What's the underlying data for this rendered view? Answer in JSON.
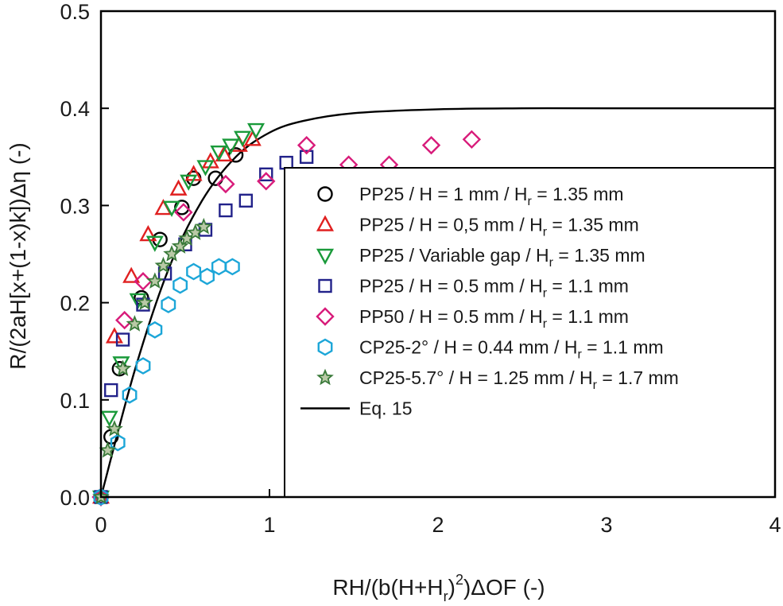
{
  "chart_data": {
    "type": "scatter",
    "title": "",
    "xlabel": "RH/(b(H+Hr)²)ΔOF (-)",
    "xlabel_parts": {
      "a": "RH/(b(H+H",
      "sub": "r",
      "b": ")",
      "sup": "2",
      "c": ")ΔOF (-)"
    },
    "ylabel": "R/(2aH[x+(1-x)k])Δη (-)",
    "xlim": [
      0,
      4
    ],
    "ylim": [
      0,
      0.5
    ],
    "xticks": [
      "0",
      "1",
      "2",
      "3",
      "4"
    ],
    "yticks": [
      "0.0",
      "0.1",
      "0.2",
      "0.3",
      "0.4",
      "0.5"
    ],
    "legend_position": "bottom-right",
    "series": [
      {
        "name": "PP25 / H = 1 mm / Hr = 1.35 mm",
        "label_parts": {
          "a": "PP25 / H = 1 mm / H",
          "sub": "r",
          "b": " = 1.35 mm"
        },
        "marker": "circle",
        "color": "#000000",
        "x": [
          0,
          0.06,
          0.11,
          0.24,
          0.35,
          0.48,
          0.55,
          0.68,
          0.8
        ],
        "y": [
          0,
          0.062,
          0.132,
          0.205,
          0.265,
          0.298,
          0.328,
          0.328,
          0.352
        ]
      },
      {
        "name": "PP25 / H = 0,5 mm / Hr = 1.35 mm",
        "label_parts": {
          "a": "PP25 / H = 0,5 mm / H",
          "sub": "r",
          "b": " = 1.35 mm"
        },
        "marker": "triangle-up",
        "color": "#e02020",
        "x": [
          0,
          0.08,
          0.18,
          0.28,
          0.37,
          0.46,
          0.55,
          0.65,
          0.73,
          0.82,
          0.9
        ],
        "y": [
          0,
          0.165,
          0.227,
          0.27,
          0.297,
          0.317,
          0.332,
          0.345,
          0.352,
          0.362,
          0.368
        ]
      },
      {
        "name": "PP25 / Variable gap / Hr = 1.35 mm",
        "label_parts": {
          "a": "PP25 / Variable gap / H",
          "sub": "r",
          "b": " = 1.35 mm"
        },
        "marker": "triangle-down",
        "color": "#1a9a3a",
        "x": [
          0,
          0.05,
          0.12,
          0.22,
          0.32,
          0.42,
          0.52,
          0.62,
          0.7,
          0.77,
          0.84,
          0.92
        ],
        "y": [
          0,
          0.082,
          0.138,
          0.203,
          0.262,
          0.298,
          0.325,
          0.34,
          0.355,
          0.362,
          0.37,
          0.378
        ]
      },
      {
        "name": "PP25 / H = 0.5 mm / Hr = 1.1 mm",
        "label_parts": {
          "a": "PP25 / H = 0.5 mm / H",
          "sub": "r",
          "b": " = 1.1 mm"
        },
        "marker": "square",
        "color": "#22228a",
        "x": [
          0,
          0.06,
          0.13,
          0.25,
          0.38,
          0.5,
          0.62,
          0.74,
          0.86,
          0.98,
          1.1,
          1.22
        ],
        "y": [
          0,
          0.11,
          0.162,
          0.198,
          0.23,
          0.26,
          0.275,
          0.295,
          0.305,
          0.332,
          0.344,
          0.35
        ]
      },
      {
        "name": "PP50 / H = 0.5 mm / Hr = 1.1 mm",
        "label_parts": {
          "a": "PP50 / H = 0.5 mm / H",
          "sub": "r",
          "b": " = 1.1 mm"
        },
        "marker": "diamond",
        "color": "#d81b7a",
        "x": [
          0,
          0.14,
          0.25,
          0.49,
          0.74,
          0.98,
          1.22,
          1.47,
          1.71,
          1.96,
          2.2
        ],
        "y": [
          0,
          0.182,
          0.222,
          0.293,
          0.322,
          0.325,
          0.362,
          0.342,
          0.342,
          0.362,
          0.368
        ]
      },
      {
        "name": "CP25-2° / H = 0.44 mm / Hr = 1.1 mm",
        "label_parts": {
          "a": "CP25-2° / H = 0.44 mm / H",
          "sub": "r",
          "b": " = 1.1 mm"
        },
        "marker": "hexagon",
        "color": "#1ca6d8",
        "x": [
          0,
          0.1,
          0.17,
          0.25,
          0.32,
          0.4,
          0.47,
          0.55,
          0.63,
          0.7,
          0.78
        ],
        "y": [
          0,
          0.056,
          0.105,
          0.135,
          0.172,
          0.198,
          0.218,
          0.232,
          0.227,
          0.237,
          0.237
        ]
      },
      {
        "name": "CP25-5.7° / H = 1.25 mm / Hr = 1.7 mm",
        "label_parts": {
          "a": "CP25-5.7° / H = 1.25 mm / H",
          "sub": "r",
          "b": " = 1.7 mm"
        },
        "marker": "star",
        "color": "#3a7a3a",
        "x": [
          0,
          0.04,
          0.08,
          0.13,
          0.2,
          0.26,
          0.32,
          0.37,
          0.42,
          0.47,
          0.51,
          0.56,
          0.61
        ],
        "y": [
          0,
          0.048,
          0.07,
          0.132,
          0.178,
          0.2,
          0.222,
          0.238,
          0.25,
          0.258,
          0.266,
          0.272,
          0.278
        ]
      },
      {
        "name": "Eq. 15",
        "label_parts": {
          "a": "Eq. 15",
          "sub": "",
          "b": ""
        },
        "marker": "line",
        "color": "#000000",
        "x": [
          0,
          0.2,
          0.4,
          0.6,
          0.8,
          1.0,
          1.2,
          1.5,
          2.0,
          2.5,
          3.0,
          4.0
        ],
        "y": [
          0,
          0.13,
          0.234,
          0.305,
          0.35,
          0.375,
          0.387,
          0.395,
          0.399,
          0.4,
          0.4,
          0.4
        ]
      }
    ]
  }
}
